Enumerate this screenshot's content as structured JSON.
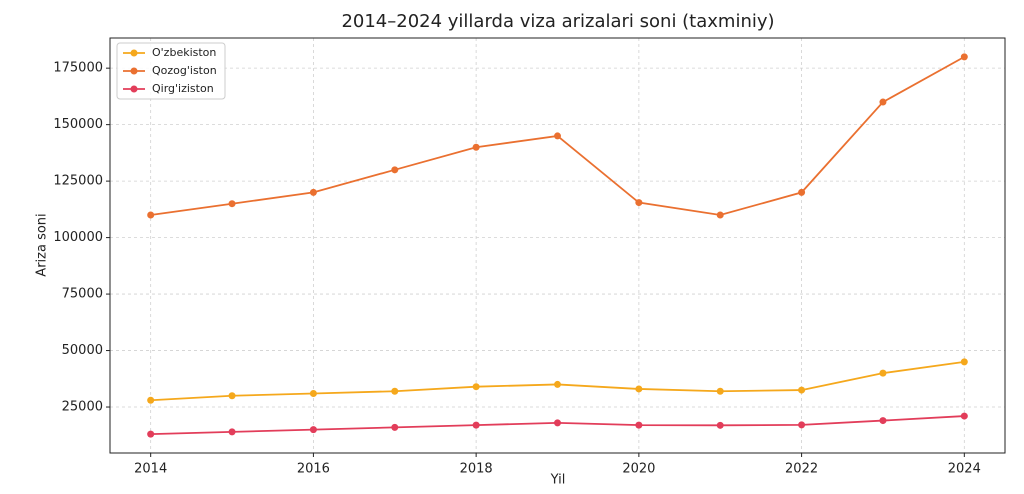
{
  "chart_data": {
    "type": "line",
    "title": "2014–2024 yillarda viza arizalari soni (taxminiy)",
    "x_label": "Yil",
    "y_label": "Ariza soni",
    "x": [
      2014,
      2015,
      2016,
      2017,
      2018,
      2019,
      2020,
      2021,
      2022,
      2023,
      2024
    ],
    "series": [
      {
        "name": "O'zbekiston",
        "color": "#f5a81c",
        "values": [
          28000,
          30000,
          31000,
          32000,
          34000,
          35000,
          33000,
          32000,
          32500,
          40000,
          45000
        ]
      },
      {
        "name": "Qozog'iston",
        "color": "#ea7030",
        "values": [
          110000,
          115000,
          120000,
          130000,
          140000,
          145000,
          115500,
          110000,
          120000,
          160000,
          180000
        ]
      },
      {
        "name": "Qirg'iziston",
        "color": "#e23d5a",
        "values": [
          13000,
          14000,
          15000,
          16000,
          17000,
          18000,
          17000,
          16900,
          17100,
          19000,
          21000
        ]
      }
    ],
    "xlim": [
      2013.5,
      2024.5
    ],
    "xticks": [
      2014,
      2016,
      2018,
      2020,
      2022,
      2024
    ],
    "ylim": [
      4650,
      188350
    ],
    "yticks": [
      25000,
      50000,
      75000,
      100000,
      125000,
      150000,
      175000
    ],
    "grid": true,
    "legend": "upper-left"
  }
}
